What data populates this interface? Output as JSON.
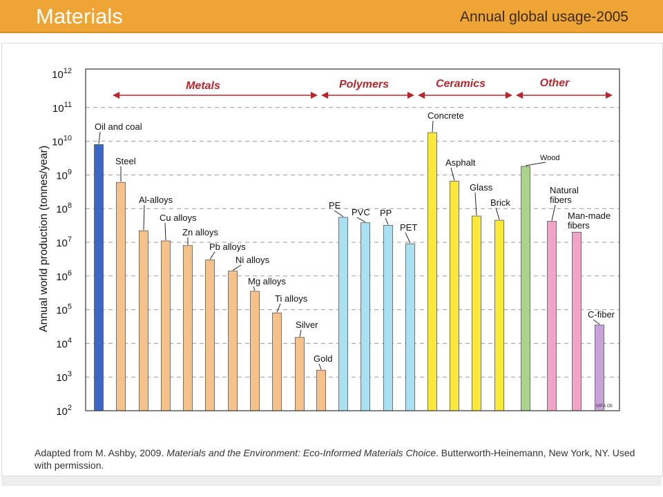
{
  "header": {
    "title": "Materials",
    "subtitle": "Annual global usage-2005",
    "bg_color": "#efa535"
  },
  "caption": {
    "prefix": "Adapted from M. Ashby, 2009. ",
    "italic": "Materials and the Environment: Eco-Informed Materials Choice",
    "suffix": ". Butterworth-Heinemann, New York, NY. Used with permission."
  },
  "chart_data": {
    "type": "bar",
    "ylabel": "Annual world production (tonnes/year)",
    "yscale": "log",
    "ylim_exponents": [
      2,
      12
    ],
    "ytick_base": "10",
    "ytick_exponents": [
      "2",
      "3",
      "4",
      "5",
      "6",
      "7",
      "8",
      "9",
      "10",
      "11",
      "12"
    ],
    "grid": "dashed horizontal",
    "groups": [
      {
        "label": "Metals",
        "color": "#b8262d"
      },
      {
        "label": "Polymers",
        "color": "#b8262d"
      },
      {
        "label": "Ceramics",
        "color": "#b8262d"
      },
      {
        "label": "Other",
        "color": "#b8262d"
      }
    ],
    "watermark": "MFA 08",
    "bars": [
      {
        "label": "Oil and coal",
        "value": 8000000000.0,
        "color": "#3a66c4",
        "group": "Metals"
      },
      {
        "label": "Steel",
        "value": 600000000.0,
        "color": "#f5c28c",
        "group": "Metals"
      },
      {
        "label": "Al-alloys",
        "value": 22000000.0,
        "color": "#f5c28c",
        "group": "Metals"
      },
      {
        "label": "Cu alloys",
        "value": 11000000.0,
        "color": "#f5c28c",
        "group": "Metals"
      },
      {
        "label": "Zn alloys",
        "value": 8000000.0,
        "color": "#f5c28c",
        "group": "Metals"
      },
      {
        "label": "Pb alloys",
        "value": 3000000.0,
        "color": "#f5c28c",
        "group": "Metals"
      },
      {
        "label": "Ni alloys",
        "value": 1400000.0,
        "color": "#f5c28c",
        "group": "Metals"
      },
      {
        "label": "Mg alloys",
        "value": 350000.0,
        "color": "#f5c28c",
        "group": "Metals"
      },
      {
        "label": "Ti alloys",
        "value": 80000.0,
        "color": "#f5c28c",
        "group": "Metals"
      },
      {
        "label": "Silver",
        "value": 15000.0,
        "color": "#f5c28c",
        "group": "Metals"
      },
      {
        "label": "Gold",
        "value": 1600.0,
        "color": "#f5c28c",
        "group": "Metals"
      },
      {
        "label": "PE",
        "value": 55000000.0,
        "color": "#a9e0f2",
        "group": "Polymers"
      },
      {
        "label": "PVC",
        "value": 38000000.0,
        "color": "#a9e0f2",
        "group": "Polymers"
      },
      {
        "label": "PP",
        "value": 32000000.0,
        "color": "#a9e0f2",
        "group": "Polymers"
      },
      {
        "label": "PET",
        "value": 9000000.0,
        "color": "#a9e0f2",
        "group": "Polymers"
      },
      {
        "label": "Concrete",
        "value": 18000000000.0,
        "color": "#fae83a",
        "group": "Ceramics"
      },
      {
        "label": "Asphalt",
        "value": 650000000.0,
        "color": "#fae83a",
        "group": "Ceramics"
      },
      {
        "label": "Glass",
        "value": 60000000.0,
        "color": "#fae83a",
        "group": "Ceramics"
      },
      {
        "label": "Brick",
        "value": 45000000.0,
        "color": "#fae83a",
        "group": "Ceramics"
      },
      {
        "label": "Wood",
        "value": 1800000000.0,
        "color": "#a9d48a",
        "group": "Other"
      },
      {
        "label": "Natural\nfibers",
        "value": 42000000.0,
        "color": "#f2a3c8",
        "group": "Other"
      },
      {
        "label": "Man-made\nfibers",
        "value": 20000000.0,
        "color": "#f2a3c8",
        "group": "Other"
      },
      {
        "label": "C-fiber",
        "value": 35000.0,
        "color": "#c9a2db",
        "group": "Other"
      }
    ]
  }
}
